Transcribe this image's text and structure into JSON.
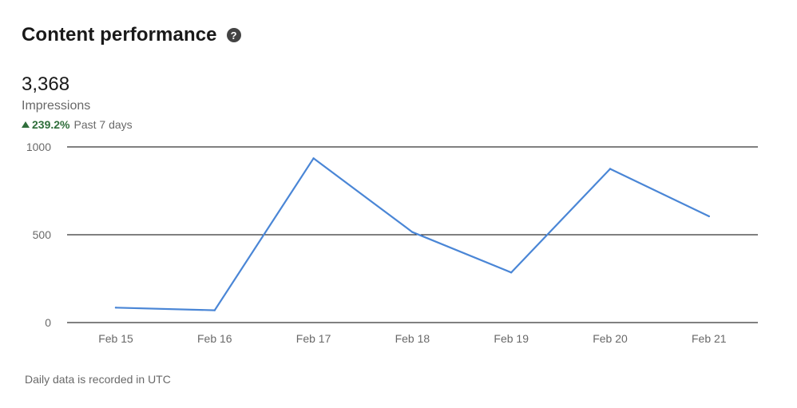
{
  "header": {
    "title": "Content performance",
    "help_icon": "question-circle-icon"
  },
  "metric": {
    "value": "3,368",
    "label": "Impressions",
    "trend_percent": "239.2%",
    "trend_period": "Past 7 days",
    "trend_direction": "up",
    "trend_color": "#2f6e3b"
  },
  "footnote": "Daily data is recorded in UTC",
  "colors": {
    "line": "#4a86d6",
    "grid": "#000000"
  },
  "chart_data": {
    "type": "line",
    "categories": [
      "Feb 15",
      "Feb 16",
      "Feb 17",
      "Feb 18",
      "Feb 19",
      "Feb 20",
      "Feb 21"
    ],
    "series": [
      {
        "values": [
          85,
          70,
          935,
          515,
          285,
          875,
          605
        ]
      }
    ],
    "yticks": [
      "0",
      "500",
      "1000"
    ],
    "ylim": [
      0,
      1000
    ],
    "grid": true,
    "xlabel": "",
    "ylabel": ""
  }
}
